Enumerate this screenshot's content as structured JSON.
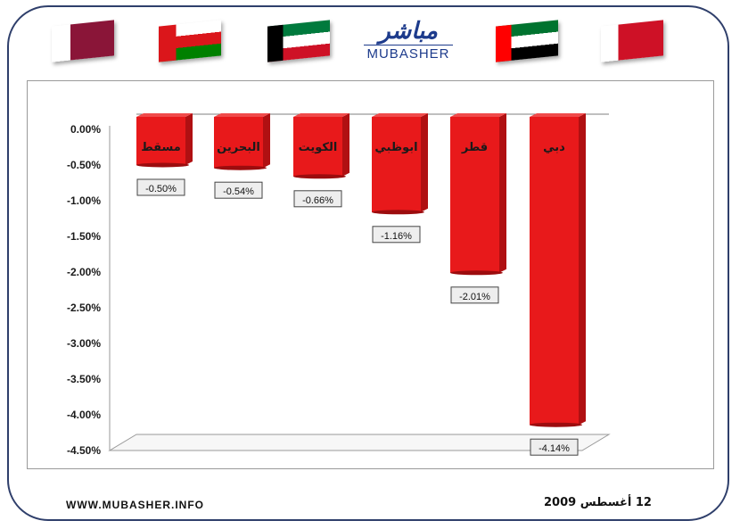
{
  "brand": {
    "name_ar": "مباشر",
    "name_en": "MUBASHER",
    "website": "WWW.MUBASHER.INFO"
  },
  "date_text": "12 أغسطس 2009",
  "flags": [
    {
      "country": "qatar",
      "colors": [
        "#ffffff",
        "#8a1538"
      ]
    },
    {
      "country": "oman",
      "colors": [
        "#db161b",
        "#ffffff",
        "#008000"
      ]
    },
    {
      "country": "kuwait",
      "colors": [
        "#007a3d",
        "#ffffff",
        "#ce1126",
        "#000000"
      ]
    },
    {
      "country": "uae",
      "colors": [
        "#00732f",
        "#ffffff",
        "#000000",
        "#ff0000"
      ]
    },
    {
      "country": "bahrain",
      "colors": [
        "#ffffff",
        "#ce1126"
      ]
    }
  ],
  "chart_data": {
    "type": "bar",
    "categories": [
      "مسقط",
      "البحرين",
      "الكويت",
      "ابوظبي",
      "قطر",
      "دبي"
    ],
    "values": [
      -0.5,
      -0.54,
      -0.66,
      -1.16,
      -2.01,
      -4.14
    ],
    "value_labels": [
      "-0.50%",
      "-0.54%",
      "-0.66%",
      "-1.16%",
      "-2.01%",
      "-4.14%"
    ],
    "y_ticks": [
      "0.00%",
      "-0.50%",
      "-1.00%",
      "-1.50%",
      "-2.00%",
      "-2.50%",
      "-3.00%",
      "-3.50%",
      "-4.00%",
      "-4.50%"
    ],
    "y_tick_values": [
      0,
      -0.5,
      -1.0,
      -1.5,
      -2.0,
      -2.5,
      -3.0,
      -3.5,
      -4.0,
      -4.5
    ],
    "ylim": [
      -4.5,
      0
    ],
    "bar_color": "#e8191b",
    "grid": false,
    "legend": false,
    "title": "",
    "xlabel": "",
    "ylabel": ""
  }
}
